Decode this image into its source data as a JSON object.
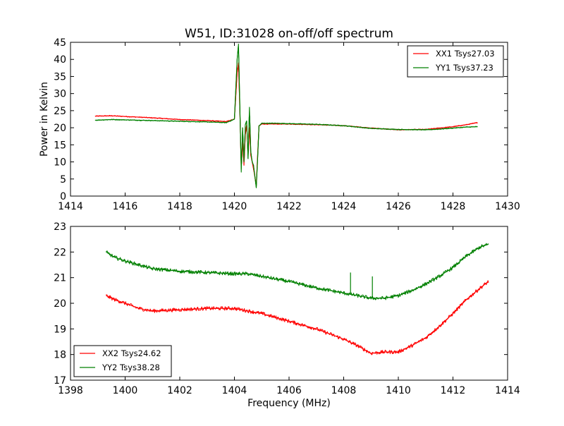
{
  "figure": {
    "title": "W51, ID:31028 on-off/off spectrum"
  },
  "chart_data": [
    {
      "type": "line",
      "title": "W51, ID:31028 on-off/off spectrum",
      "xlabel": "",
      "ylabel": "Power in Kelvin",
      "xlim": [
        1414,
        1430
      ],
      "ylim": [
        0,
        45
      ],
      "xticks": [
        "1414",
        "1416",
        "1418",
        "1420",
        "1422",
        "1424",
        "1426",
        "1428",
        "1430"
      ],
      "yticks": [
        "0",
        "5",
        "10",
        "15",
        "20",
        "25",
        "30",
        "35",
        "40",
        "45"
      ],
      "grid": false,
      "legend_position": "top-right",
      "series": [
        {
          "name": "XX1 Tsys27.03",
          "color": "#ff0000",
          "x": [
            1414.9,
            1415.5,
            1416.0,
            1417.0,
            1418.0,
            1419.0,
            1419.7,
            1420.0,
            1420.1,
            1420.15,
            1420.2,
            1420.25,
            1420.3,
            1420.35,
            1420.4,
            1420.45,
            1420.5,
            1420.55,
            1420.6,
            1420.65,
            1420.7,
            1420.8,
            1420.85,
            1420.9,
            1421.0,
            1421.5,
            1422.0,
            1423.0,
            1424.0,
            1425.0,
            1426.0,
            1427.0,
            1427.5,
            1428.0,
            1428.5,
            1428.9
          ],
          "y": [
            23.4,
            23.5,
            23.3,
            22.9,
            22.4,
            22.1,
            21.8,
            22.5,
            36,
            39,
            25,
            8,
            16,
            9,
            18,
            21,
            12,
            20,
            12,
            10,
            8,
            3,
            12,
            20.5,
            21.1,
            21.1,
            21.1,
            20.9,
            20.6,
            19.9,
            19.4,
            19.5,
            19.9,
            20.3,
            20.9,
            21.5
          ]
        },
        {
          "name": "YY1 Tsys37.23",
          "color": "#008000",
          "x": [
            1414.9,
            1415.5,
            1416.0,
            1417.0,
            1418.0,
            1419.0,
            1419.7,
            1420.0,
            1420.1,
            1420.15,
            1420.2,
            1420.25,
            1420.3,
            1420.35,
            1420.4,
            1420.45,
            1420.5,
            1420.55,
            1420.6,
            1420.65,
            1420.7,
            1420.8,
            1420.85,
            1420.9,
            1421.0,
            1421.5,
            1422.0,
            1423.0,
            1424.0,
            1425.0,
            1426.0,
            1427.0,
            1427.5,
            1428.0,
            1428.5,
            1428.9
          ],
          "y": [
            22.2,
            22.4,
            22.3,
            22.1,
            21.9,
            21.7,
            21.5,
            22.5,
            40,
            44.5,
            26,
            7,
            20,
            10,
            21,
            22,
            11,
            26,
            13,
            10,
            9,
            2.5,
            11,
            20.5,
            21.3,
            21.3,
            21.2,
            21.0,
            20.6,
            19.8,
            19.5,
            19.4,
            19.6,
            19.9,
            20.2,
            20.3
          ]
        }
      ]
    },
    {
      "type": "line",
      "title": "",
      "xlabel": "Frequency (MHz)",
      "ylabel": "",
      "xlim": [
        1398,
        1414
      ],
      "ylim": [
        17,
        23
      ],
      "xticks": [
        "1398",
        "1400",
        "1402",
        "1404",
        "1406",
        "1408",
        "1410",
        "1412",
        "1414"
      ],
      "yticks": [
        "17",
        "18",
        "19",
        "20",
        "21",
        "22",
        "23"
      ],
      "grid": false,
      "legend_position": "bottom-left",
      "series": [
        {
          "name": "XX2 Tsys24.62",
          "color": "#ff0000",
          "x": [
            1399.3,
            1399.6,
            1400.0,
            1400.5,
            1401.0,
            1402.0,
            1403.0,
            1404.0,
            1404.5,
            1405.0,
            1406.0,
            1407.0,
            1408.0,
            1408.5,
            1409.0,
            1409.5,
            1410.0,
            1410.5,
            1411.0,
            1411.5,
            1412.0,
            1412.5,
            1413.0,
            1413.3
          ],
          "y": [
            20.3,
            20.15,
            20.0,
            19.8,
            19.7,
            19.75,
            19.8,
            19.8,
            19.7,
            19.6,
            19.3,
            19.0,
            18.6,
            18.35,
            18.05,
            18.1,
            18.1,
            18.35,
            18.65,
            19.1,
            19.6,
            20.15,
            20.6,
            20.85
          ]
        },
        {
          "name": "YY2 Tsys38.28",
          "color": "#008000",
          "x": [
            1399.3,
            1399.6,
            1400.0,
            1400.5,
            1401.0,
            1402.0,
            1403.0,
            1404.0,
            1404.5,
            1405.0,
            1406.0,
            1407.0,
            1408.0,
            1408.25,
            1408.5,
            1409.0,
            1409.5,
            1410.0,
            1410.5,
            1411.0,
            1411.5,
            1412.0,
            1412.5,
            1413.0,
            1413.3
          ],
          "y": [
            22.0,
            21.8,
            21.65,
            21.5,
            21.35,
            21.25,
            21.2,
            21.15,
            21.15,
            21.05,
            20.85,
            20.6,
            20.4,
            20.35,
            20.3,
            20.2,
            20.2,
            20.3,
            20.5,
            20.75,
            21.05,
            21.4,
            21.85,
            22.2,
            22.3
          ]
        }
      ]
    }
  ]
}
